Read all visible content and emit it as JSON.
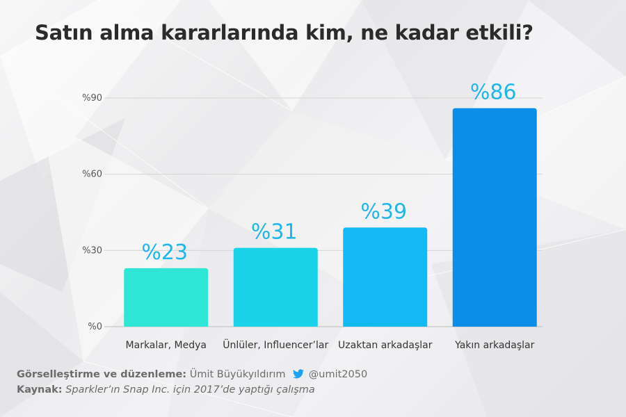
{
  "title": "Satın alma kararlarında kim, ne kadar etkili?",
  "chart_data": {
    "type": "bar",
    "categories": [
      "Markalar, Medya",
      "Ünlüler, Influencer’lar",
      "Uzaktan arkadaşlar",
      "Yakın arkadaşlar"
    ],
    "values": [
      23,
      31,
      39,
      86
    ],
    "value_labels": [
      "%23",
      "%31",
      "%39",
      "%86"
    ],
    "colors": [
      "#2ee5d6",
      "#19d3e8",
      "#12b9f2",
      "#0a8ee8"
    ],
    "label_color": "#1fb6ec",
    "ylim": [
      0,
      90
    ],
    "yticks": [
      0,
      30,
      60,
      90
    ],
    "ytick_labels": [
      "%0",
      "%30",
      "%60",
      "%90"
    ],
    "grid": true,
    "legend": "none"
  },
  "footer": {
    "credit_label": "Görselleştirme ve düzenleme:",
    "credit_name": "Ümit Büyükyıldırım",
    "twitter_icon": "twitter-bird-icon",
    "twitter_handle": "@umit2050",
    "twitter_color": "#1da1f2",
    "source_label": "Kaynak:",
    "source_text": "Sparkler’ın Snap Inc. için 2017’de yaptığı çalışma"
  }
}
